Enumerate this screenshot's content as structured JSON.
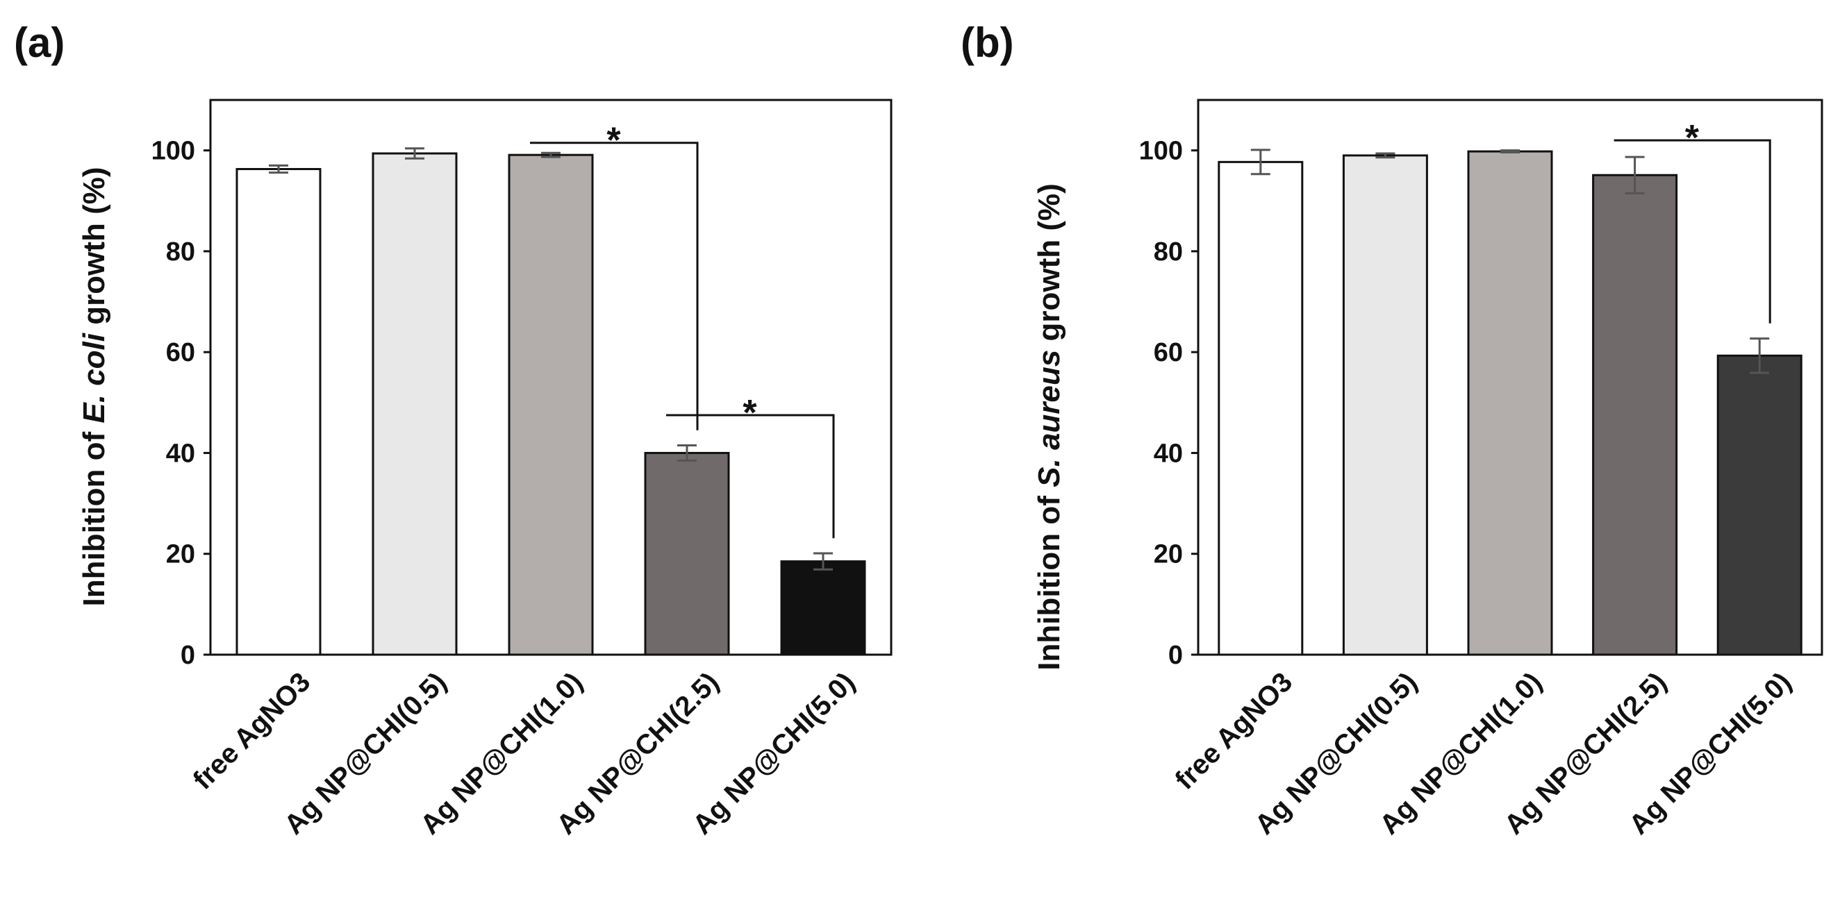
{
  "chart_data": [
    {
      "panel": "(a)",
      "type": "bar",
      "categories": [
        "free AgNO3",
        "Ag NP@CHI(0.5)",
        "Ag NP@CHI(1.0)",
        "Ag NP@CHI(2.5)",
        "Ag NP@CHI(5.0)"
      ],
      "values": [
        96.3,
        99.4,
        99.1,
        40.0,
        18.5
      ],
      "errors": [
        0.7,
        1.0,
        0.4,
        1.5,
        1.6
      ],
      "colors": [
        "#ffffff",
        "#e8e8e8",
        "#b3aeab",
        "#716a6a",
        "#111111"
      ],
      "ylabel_prefix": "Inhibition of ",
      "ylabel_italic": "E. coli",
      "ylabel_suffix": " growth (%)",
      "ylim": [
        0,
        110
      ],
      "yticks": [
        0,
        20,
        40,
        60,
        80,
        100
      ],
      "significance": [
        {
          "from": 2,
          "to": 3,
          "bar_y": 101.5,
          "label": "*"
        },
        {
          "from": 3,
          "to": 4,
          "bar_y": 47.5,
          "label": "*"
        }
      ]
    },
    {
      "panel": "(b)",
      "type": "bar",
      "categories": [
        "free AgNO3",
        "Ag NP@CHI(0.5)",
        "Ag NP@CHI(1.0)",
        "Ag NP@CHI(2.5)",
        "Ag NP@CHI(5.0)"
      ],
      "values": [
        97.7,
        99.0,
        99.8,
        95.1,
        59.3
      ],
      "errors": [
        2.4,
        0.4,
        0.2,
        3.6,
        3.4
      ],
      "colors": [
        "#ffffff",
        "#e8e8e8",
        "#b3aeab",
        "#716a6a",
        "#3b3b3b"
      ],
      "ylabel_prefix": "Inhibition of ",
      "ylabel_italic": "S. aureus",
      "ylabel_suffix": " growth (%)",
      "ylim": [
        0,
        110
      ],
      "yticks": [
        0,
        20,
        40,
        60,
        80,
        100
      ],
      "significance": [
        {
          "from": 3,
          "to": 4,
          "bar_y": 102.0,
          "label": "*"
        }
      ]
    }
  ]
}
